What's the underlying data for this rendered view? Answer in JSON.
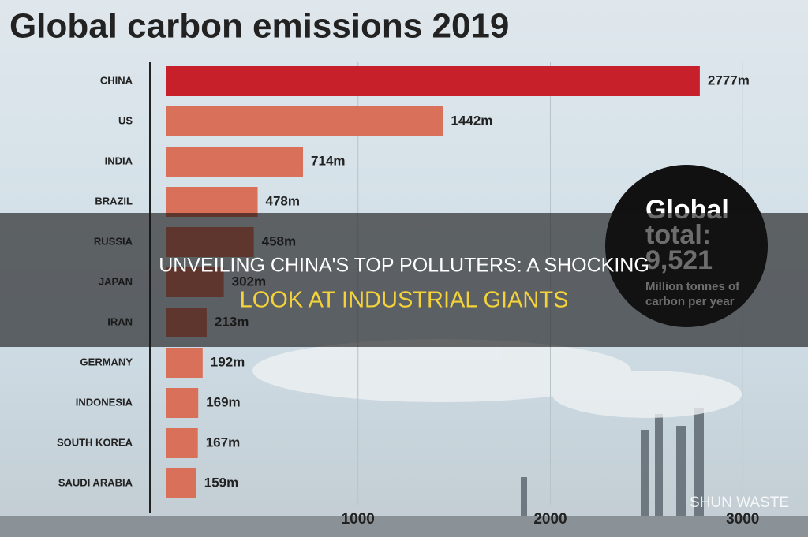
{
  "chart_data": {
    "type": "bar",
    "orientation": "horizontal",
    "title": "Global carbon emissions 2019",
    "categories": [
      "CHINA",
      "US",
      "INDIA",
      "BRAZIL",
      "RUSSIA",
      "JAPAN",
      "IRAN",
      "GERMANY",
      "INDONESIA",
      "SOUTH KOREA",
      "SAUDI ARABIA"
    ],
    "values": [
      2777,
      1442,
      714,
      478,
      458,
      302,
      213,
      192,
      169,
      167,
      159
    ],
    "value_labels": [
      "2777m",
      "1442m",
      "714m",
      "478m",
      "458m",
      "302m",
      "213m",
      "192m",
      "169m",
      "167m",
      "159m"
    ],
    "colors": [
      "#c8202a",
      "#d9705a",
      "#d9705a",
      "#d9705a",
      "#d9705a",
      "#d9705a",
      "#d9705a",
      "#d9705a",
      "#d9705a",
      "#d9705a",
      "#d9705a"
    ],
    "xlim": [
      0,
      3200
    ],
    "xticks": [
      1000,
      2000,
      3000
    ],
    "grid": true,
    "total_lines": [
      "Global",
      "total:",
      "9,521",
      "Million tonnes of",
      "carbon per year"
    ]
  },
  "banner": {
    "lines": [
      "UNVEILING CHINA'S TOP POLLUTERS: A SHOCKING",
      "LOOK AT INDUSTRIAL GIANTS"
    ]
  },
  "watermark": "SHUN WASTE"
}
